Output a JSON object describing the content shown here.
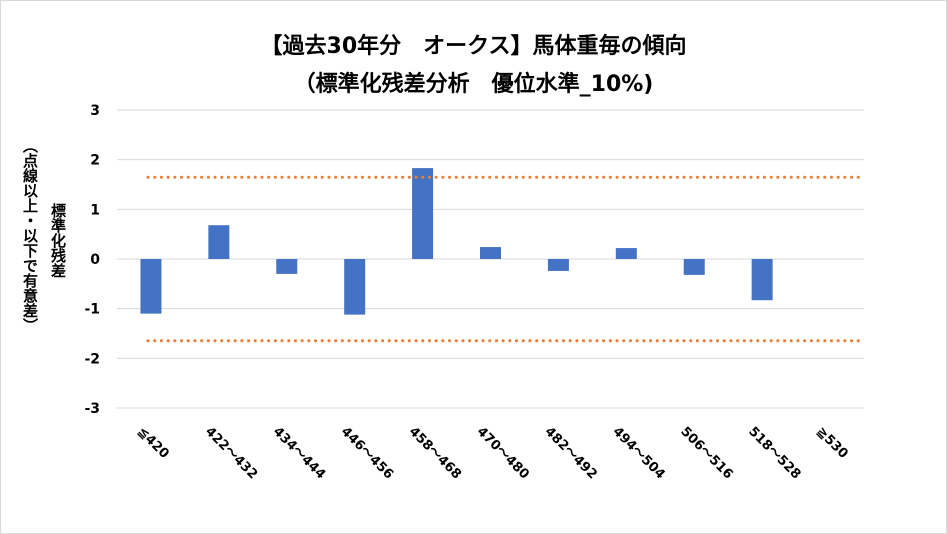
{
  "chart_data": {
    "type": "bar",
    "title": "【過去30年分　オークス】馬体重毎の傾向",
    "subtitle": "（標準化残差分析　優位水準_10%)",
    "ylabel": "標準化残差",
    "ylabel_note": "（点線以上・以下で有意差）",
    "categories": [
      "≦420",
      "422～432",
      "434～444",
      "446～456",
      "458～468",
      "470～480",
      "482～492",
      "494～504",
      "506～516",
      "518～528",
      "≧530"
    ],
    "values": [
      -1.1,
      0.68,
      -0.3,
      -1.12,
      1.83,
      0.24,
      -0.24,
      0.22,
      -0.32,
      -0.83,
      null
    ],
    "ylim": [
      -3,
      3
    ],
    "yticks": [
      "3",
      "2",
      "1",
      "0",
      "-1",
      "-2",
      "-3"
    ],
    "thresholds": [
      1.645,
      -1.645
    ],
    "grid": true,
    "bar_color": "#4472c4",
    "threshold_color": "#ed7d31",
    "grid_color": "#d9d9d9"
  }
}
